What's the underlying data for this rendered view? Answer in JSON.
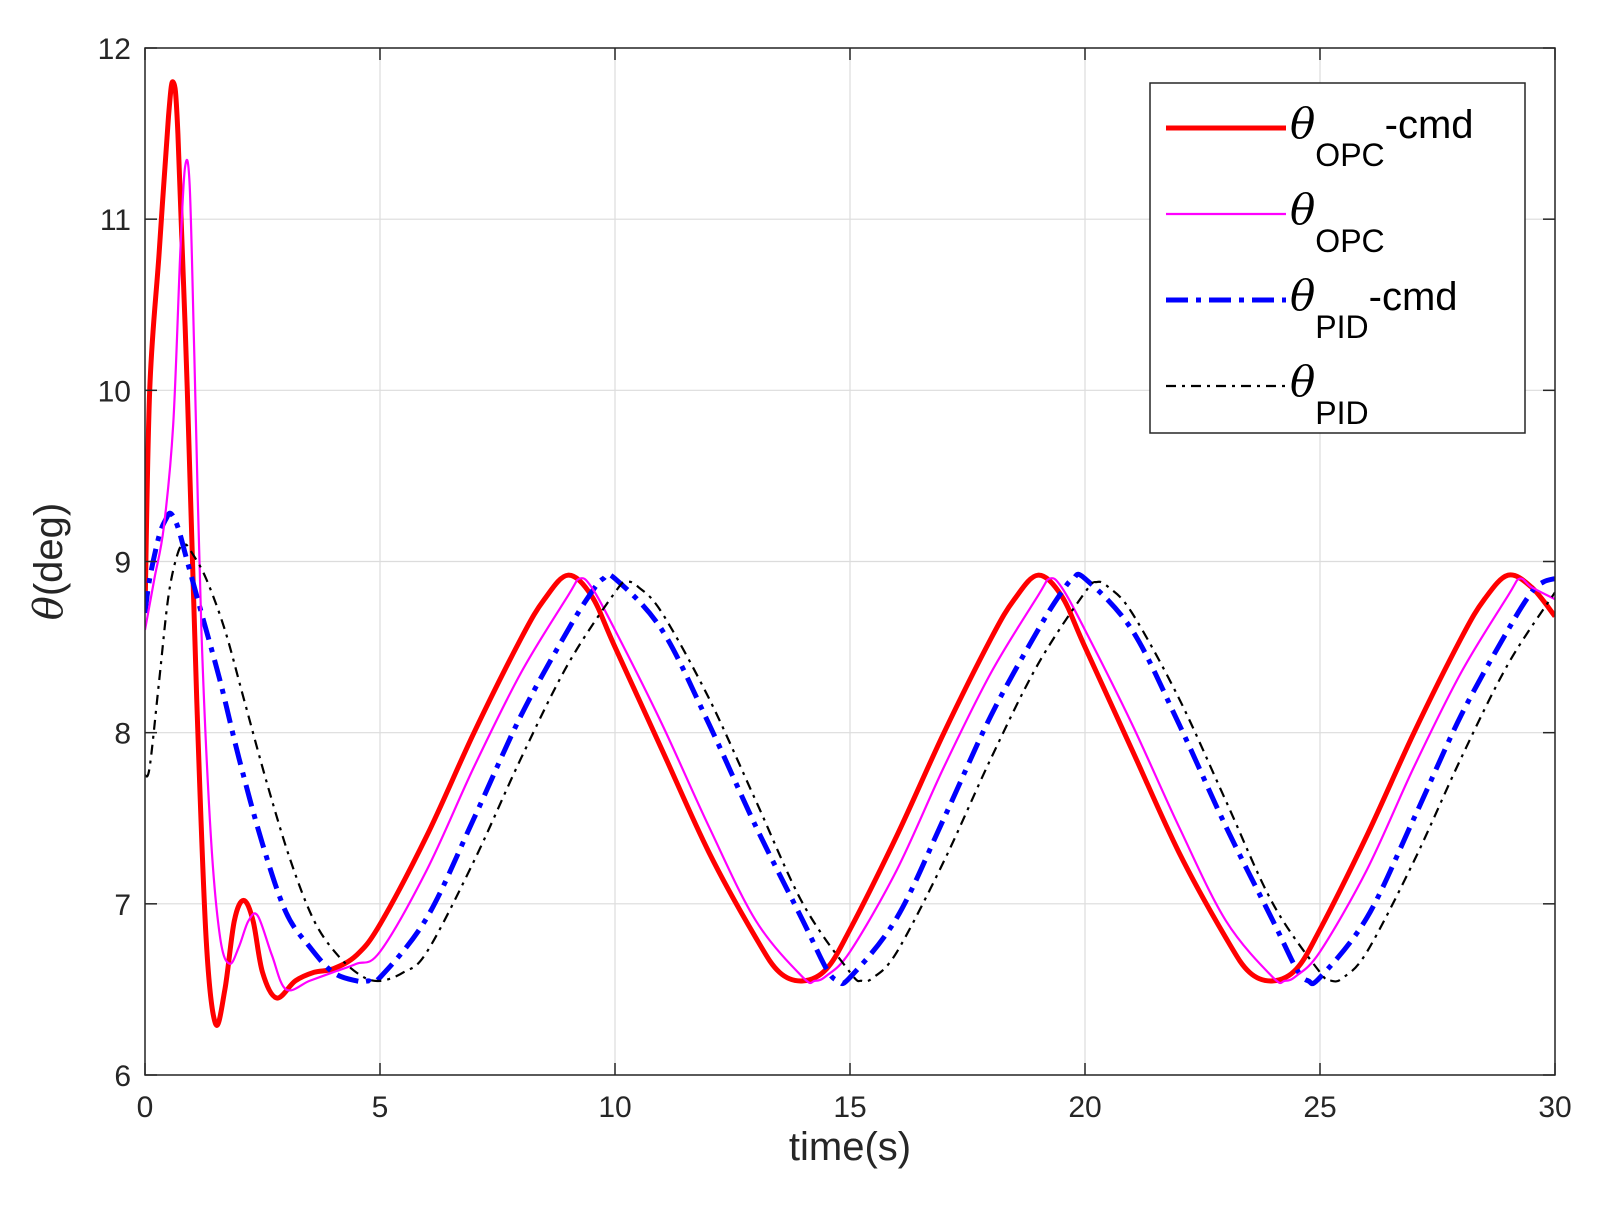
{
  "chart_data": {
    "type": "line",
    "title": "",
    "xlabel": "time(s)",
    "ylabel_symbol": "θ",
    "ylabel_unit": "(deg)",
    "xlim": [
      0,
      30
    ],
    "ylim": [
      6,
      12
    ],
    "xticks": [
      0,
      5,
      10,
      15,
      20,
      25,
      30
    ],
    "yticks": [
      6,
      7,
      8,
      9,
      10,
      11,
      12
    ],
    "grid": true,
    "legend_position": "top-right",
    "series": [
      {
        "name": "θOPC-cmd",
        "symbol": "θ",
        "subscript": "OPC",
        "suffix": "-cmd",
        "color": "#ff0000",
        "style": "solid",
        "weight": "thick",
        "x": [
          0,
          0.1,
          0.3,
          0.5,
          0.6,
          0.7,
          0.9,
          1.1,
          1.3,
          1.5,
          1.7,
          1.9,
          2.1,
          2.3,
          2.5,
          2.8,
          3.2,
          3.6,
          4.0,
          4.5,
          5,
          6,
          7,
          8,
          8.5,
          9,
          9.5,
          10,
          11,
          12,
          13,
          13.5,
          14,
          14.5,
          15,
          16,
          17,
          18,
          18.5,
          19,
          19.5,
          20,
          21,
          22,
          23,
          23.5,
          24,
          24.5,
          25,
          26,
          27,
          28,
          28.5,
          29,
          29.5,
          30
        ],
        "y": [
          8.7,
          10.0,
          10.8,
          11.6,
          11.8,
          11.5,
          10.0,
          8.2,
          6.8,
          6.3,
          6.5,
          6.9,
          7.02,
          6.9,
          6.6,
          6.45,
          6.55,
          6.6,
          6.62,
          6.7,
          6.88,
          7.4,
          8.0,
          8.55,
          8.78,
          8.92,
          8.8,
          8.5,
          7.9,
          7.3,
          6.8,
          6.6,
          6.55,
          6.62,
          6.85,
          7.4,
          8.0,
          8.55,
          8.78,
          8.92,
          8.8,
          8.5,
          7.9,
          7.3,
          6.8,
          6.6,
          6.55,
          6.62,
          6.85,
          7.4,
          8.0,
          8.55,
          8.78,
          8.92,
          8.85,
          8.68
        ]
      },
      {
        "name": "θOPC",
        "symbol": "θ",
        "subscript": "OPC",
        "suffix": "",
        "color": "#ff00ff",
        "style": "solid",
        "weight": "thin",
        "x": [
          0,
          0.2,
          0.4,
          0.6,
          0.75,
          0.85,
          0.95,
          1.05,
          1.2,
          1.4,
          1.6,
          1.8,
          2.0,
          2.2,
          2.4,
          2.7,
          3.0,
          3.5,
          4.0,
          4.5,
          5,
          6,
          7,
          8,
          9,
          9.25,
          9.5,
          10,
          11,
          12,
          13,
          14,
          14.25,
          14.5,
          15,
          16,
          17,
          18,
          19,
          19.25,
          19.5,
          20,
          21,
          22,
          23,
          24,
          24.25,
          24.5,
          25,
          26,
          27,
          28,
          29,
          29.25,
          29.5,
          30
        ],
        "y": [
          8.6,
          8.9,
          9.2,
          9.8,
          10.8,
          11.3,
          11.2,
          10.2,
          8.6,
          7.4,
          6.8,
          6.65,
          6.75,
          6.9,
          6.93,
          6.7,
          6.5,
          6.55,
          6.6,
          6.65,
          6.72,
          7.2,
          7.8,
          8.35,
          8.8,
          8.9,
          8.85,
          8.6,
          8.05,
          7.45,
          6.9,
          6.57,
          6.55,
          6.58,
          6.72,
          7.2,
          7.8,
          8.35,
          8.8,
          8.9,
          8.85,
          8.6,
          8.05,
          7.45,
          6.9,
          6.57,
          6.55,
          6.58,
          6.72,
          7.2,
          7.8,
          8.35,
          8.8,
          8.9,
          8.85,
          8.78
        ]
      },
      {
        "name": "θPID-cmd",
        "symbol": "θ",
        "subscript": "PID",
        "suffix": "-cmd",
        "color": "#0000ff",
        "style": "dashdot",
        "weight": "thick",
        "x": [
          0,
          0.1,
          0.3,
          0.45,
          0.55,
          0.7,
          0.9,
          1.2,
          1.6,
          2.0,
          2.5,
          3.0,
          3.5,
          4.0,
          4.5,
          4.75,
          5,
          6,
          7,
          8,
          9,
          9.5,
          9.75,
          10,
          11,
          12,
          13,
          14,
          14.5,
          14.75,
          15,
          16,
          17,
          18,
          19,
          19.5,
          19.75,
          20,
          21,
          22,
          23,
          24,
          24.5,
          24.75,
          25,
          26,
          27,
          28,
          29,
          29.5,
          29.75,
          30
        ],
        "y": [
          8.7,
          8.9,
          9.15,
          9.25,
          9.28,
          9.2,
          9.0,
          8.7,
          8.3,
          7.85,
          7.35,
          6.95,
          6.75,
          6.6,
          6.55,
          6.55,
          6.57,
          6.92,
          7.5,
          8.1,
          8.6,
          8.82,
          8.9,
          8.9,
          8.6,
          8.05,
          7.45,
          6.9,
          6.62,
          6.55,
          6.57,
          6.92,
          7.5,
          8.1,
          8.6,
          8.82,
          8.9,
          8.9,
          8.6,
          8.05,
          7.45,
          6.9,
          6.62,
          6.55,
          6.57,
          6.92,
          7.5,
          8.1,
          8.6,
          8.82,
          8.88,
          8.9
        ]
      },
      {
        "name": "θPID",
        "symbol": "θ",
        "subscript": "PID",
        "suffix": "",
        "color": "#000000",
        "style": "dashdot",
        "weight": "thin",
        "x": [
          0,
          0.1,
          0.3,
          0.5,
          0.7,
          0.85,
          1.0,
          1.3,
          1.7,
          2.1,
          2.6,
          3.1,
          3.6,
          4.1,
          4.6,
          5.0,
          5.5,
          6,
          7,
          8,
          9,
          10,
          10.25,
          10.5,
          11,
          12,
          13,
          14,
          15,
          15.25,
          15.5,
          16,
          17,
          18,
          19,
          20,
          20.25,
          20.5,
          21,
          22,
          23,
          24,
          25,
          25.25,
          25.5,
          26,
          27,
          28,
          29,
          30
        ],
        "y": [
          7.75,
          7.8,
          8.3,
          8.8,
          9.05,
          9.1,
          9.05,
          8.9,
          8.6,
          8.2,
          7.7,
          7.25,
          6.9,
          6.7,
          6.58,
          6.55,
          6.6,
          6.72,
          7.25,
          7.85,
          8.4,
          8.82,
          8.88,
          8.85,
          8.7,
          8.2,
          7.6,
          7.0,
          6.6,
          6.55,
          6.57,
          6.72,
          7.25,
          7.85,
          8.4,
          8.82,
          8.88,
          8.85,
          8.7,
          8.2,
          7.6,
          7.0,
          6.6,
          6.55,
          6.57,
          6.72,
          7.25,
          7.85,
          8.4,
          8.82
        ]
      }
    ]
  }
}
